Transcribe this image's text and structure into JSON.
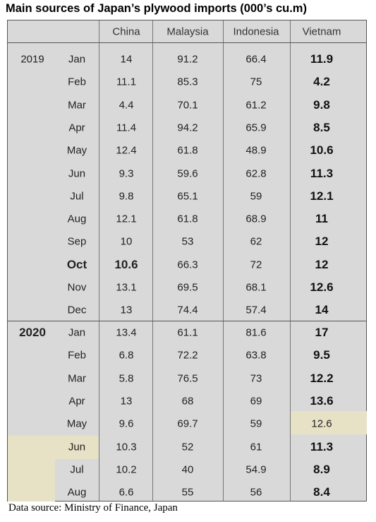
{
  "title": "Main sources of Japan’s plywood imports (000’s cu.m)",
  "table": {
    "header": [
      "China",
      "Malaysia",
      "Indonesia",
      "Vietnam"
    ],
    "groups": [
      {
        "year": "2019",
        "rows": [
          [
            "Jan",
            14,
            91.2,
            66.4,
            11.9
          ],
          [
            "Feb",
            11.1,
            85.3,
            75,
            4.2
          ],
          [
            "Mar",
            4.4,
            70.1,
            61.2,
            9.8
          ],
          [
            "Apr",
            11.4,
            94.2,
            65.9,
            8.5
          ],
          [
            "May",
            12.4,
            61.8,
            48.9,
            10.6
          ],
          [
            "Jun",
            9.3,
            59.6,
            62.8,
            11.3
          ],
          [
            "Jul",
            9.8,
            65.1,
            59,
            12.1
          ],
          [
            "Aug",
            12.1,
            61.8,
            68.9,
            11
          ],
          [
            "Sep",
            10,
            53,
            62,
            12
          ],
          [
            "Oct",
            10.6,
            66.3,
            72,
            12
          ],
          [
            "Nov",
            13.1,
            69.5,
            68.1,
            12.6
          ],
          [
            "Dec",
            13,
            74.4,
            57.4,
            14
          ]
        ]
      },
      {
        "year": "2020",
        "rows": [
          [
            "Jan",
            13.4,
            61.1,
            81.6,
            17
          ],
          [
            "Feb",
            6.8,
            72.2,
            63.8,
            9.5
          ],
          [
            "Mar",
            5.8,
            76.5,
            73,
            12.2
          ],
          [
            "Apr",
            13,
            68,
            69,
            13.6
          ],
          [
            "May",
            9.6,
            69.7,
            59,
            12.6
          ],
          [
            "Jun",
            10.3,
            52,
            61,
            11.3
          ],
          [
            "Jul",
            10.2,
            40,
            54.9,
            8.9
          ],
          [
            "Aug",
            6.6,
            55,
            56,
            8.4
          ]
        ]
      }
    ]
  },
  "source": "Data source: Ministry of Finance, Japan"
}
